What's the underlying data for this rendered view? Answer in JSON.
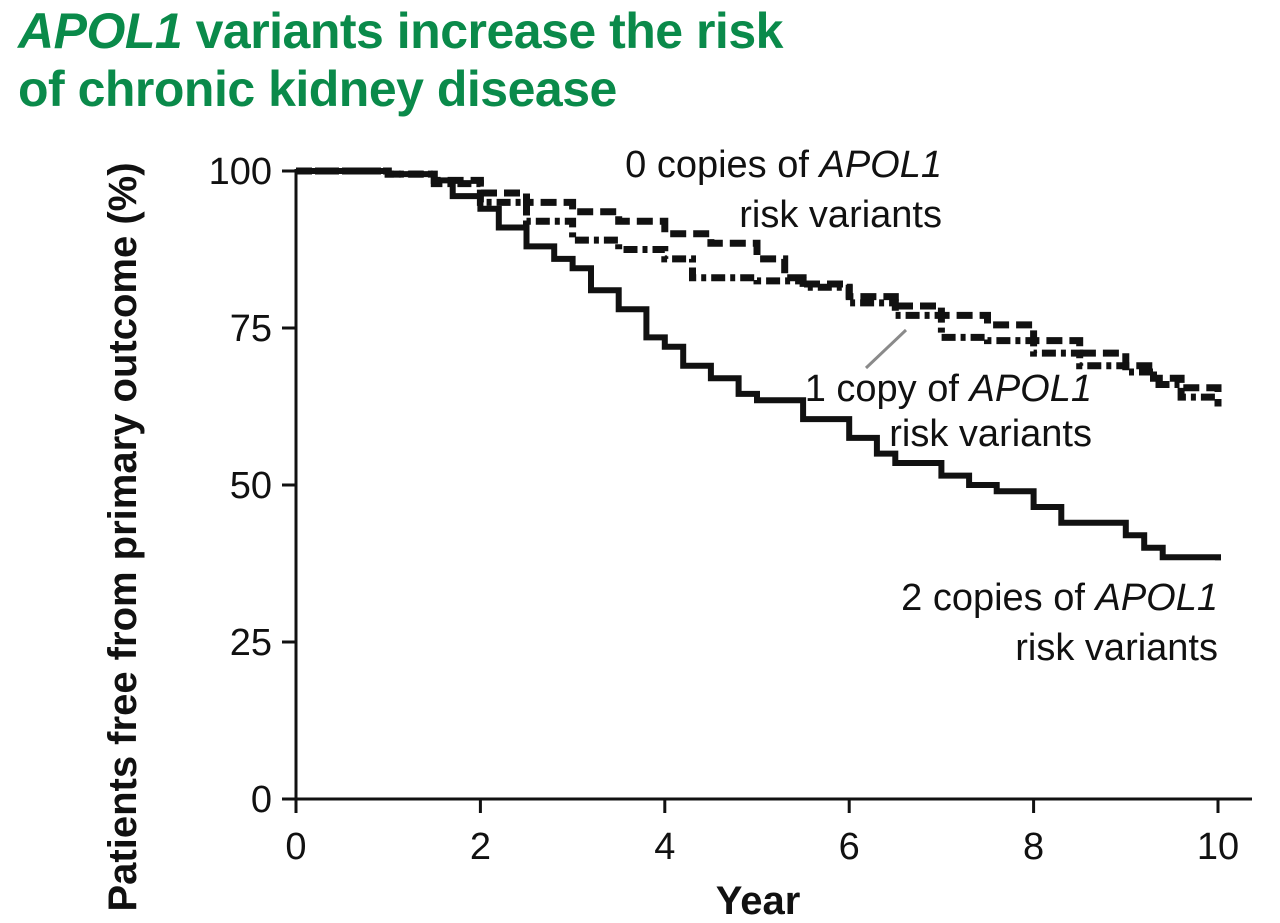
{
  "title": {
    "italic_part": "APOL1",
    "rest_line1": " variants increase the risk",
    "line2": "of chronic kidney disease",
    "color": "#0a8a4a"
  },
  "chart_data": {
    "type": "line",
    "xlabel": "Year",
    "ylabel": "Patients free from primary outcome (%)",
    "xlim": [
      0,
      10
    ],
    "ylim": [
      0,
      100
    ],
    "x_ticks": [
      0,
      2,
      4,
      6,
      8,
      10
    ],
    "y_ticks": [
      0,
      25,
      50,
      75,
      100
    ],
    "grid": false,
    "legend": "none",
    "series": [
      {
        "name": "0 copies of APOL1 risk variants",
        "style": "dashed",
        "points": [
          [
            0,
            100
          ],
          [
            1,
            99.5
          ],
          [
            1.5,
            98.5
          ],
          [
            2,
            96.5
          ],
          [
            2.5,
            95
          ],
          [
            3,
            93.5
          ],
          [
            3.5,
            92
          ],
          [
            4,
            90
          ],
          [
            4.5,
            88.5
          ],
          [
            5,
            86
          ],
          [
            5.3,
            83
          ],
          [
            5.5,
            82
          ],
          [
            6,
            80
          ],
          [
            6.5,
            78.5
          ],
          [
            7,
            77
          ],
          [
            7.5,
            75.5
          ],
          [
            8,
            73
          ],
          [
            8.5,
            71
          ],
          [
            9,
            69
          ],
          [
            9.3,
            67
          ],
          [
            9.6,
            65.5
          ],
          [
            10,
            62.5
          ]
        ]
      },
      {
        "name": "1 copy of APOL1 risk variants",
        "style": "dash-dot",
        "points": [
          [
            0,
            100
          ],
          [
            1,
            99.5
          ],
          [
            1.5,
            98
          ],
          [
            2,
            95
          ],
          [
            2.5,
            92
          ],
          [
            3,
            89
          ],
          [
            3.5,
            87.5
          ],
          [
            4,
            86
          ],
          [
            4.3,
            83
          ],
          [
            5,
            82.5
          ],
          [
            5.5,
            81.5
          ],
          [
            6,
            79
          ],
          [
            6.5,
            77
          ],
          [
            7,
            73.5
          ],
          [
            7.5,
            73
          ],
          [
            8,
            71
          ],
          [
            8.5,
            69
          ],
          [
            9,
            68
          ],
          [
            9.3,
            66
          ],
          [
            9.6,
            64
          ],
          [
            10,
            62.5
          ]
        ]
      },
      {
        "name": "2 copies of APOL1 risk variants",
        "style": "solid",
        "points": [
          [
            0,
            100
          ],
          [
            1,
            99.5
          ],
          [
            1.5,
            98.5
          ],
          [
            1.7,
            96
          ],
          [
            2,
            94
          ],
          [
            2.2,
            91
          ],
          [
            2.5,
            88
          ],
          [
            2.8,
            86
          ],
          [
            3,
            84.5
          ],
          [
            3.2,
            81
          ],
          [
            3.5,
            78
          ],
          [
            3.8,
            73.5
          ],
          [
            4,
            72
          ],
          [
            4.2,
            69
          ],
          [
            4.5,
            67
          ],
          [
            4.8,
            64.5
          ],
          [
            5,
            63.5
          ],
          [
            5.5,
            60.5
          ],
          [
            6,
            57.5
          ],
          [
            6.3,
            55
          ],
          [
            6.5,
            53.5
          ],
          [
            7,
            51.5
          ],
          [
            7.3,
            50
          ],
          [
            7.6,
            49
          ],
          [
            8,
            46.5
          ],
          [
            8.3,
            44
          ],
          [
            8.7,
            44
          ],
          [
            9,
            42
          ],
          [
            9.2,
            40
          ],
          [
            9.4,
            38.5
          ],
          [
            10,
            38
          ]
        ]
      }
    ],
    "annotations": [
      {
        "series": 0,
        "line1": {
          "plain": "0 copies of ",
          "italic": "APOL1"
        },
        "line2": "risk variants"
      },
      {
        "series": 1,
        "line1": {
          "plain": "1 copy of ",
          "italic": "APOL1"
        },
        "line2": "risk variants"
      },
      {
        "series": 2,
        "line1": {
          "plain": "2 copies of ",
          "italic": "APOL1"
        },
        "line2": "risk variants"
      }
    ]
  }
}
